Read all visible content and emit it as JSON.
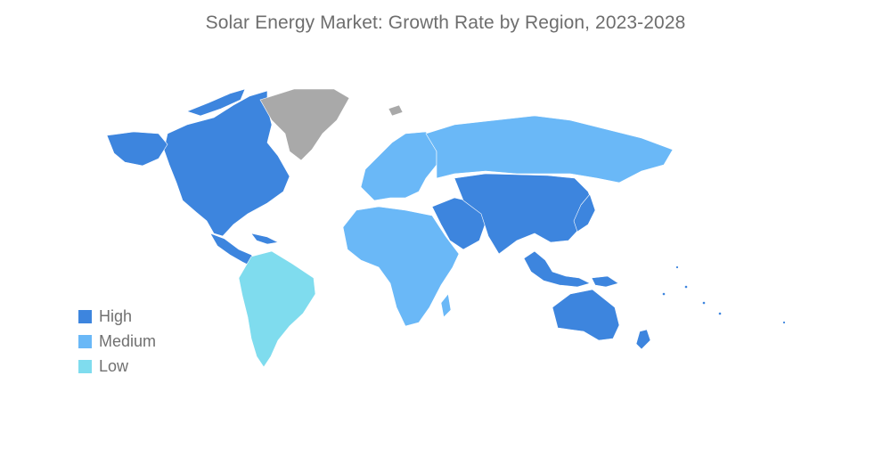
{
  "title": "Solar Energy Market: Growth Rate by Region, 2023-2028",
  "colors": {
    "high": "#3d85de",
    "medium": "#6ab8f7",
    "low": "#7fdcee",
    "no_data": "#a9a9a9"
  },
  "legend": [
    {
      "label": "High",
      "color": "#3d85de"
    },
    {
      "label": "Medium",
      "color": "#6ab8f7"
    },
    {
      "label": "Low",
      "color": "#7fdcee"
    }
  ],
  "regions": [
    {
      "name": "North America",
      "level": "high"
    },
    {
      "name": "Central America and Caribbean",
      "level": "high"
    },
    {
      "name": "South America",
      "level": "low"
    },
    {
      "name": "Greenland",
      "level": "no_data"
    },
    {
      "name": "Svalbard",
      "level": "no_data"
    },
    {
      "name": "Europe",
      "level": "medium"
    },
    {
      "name": "Russia",
      "level": "medium"
    },
    {
      "name": "Africa",
      "level": "medium"
    },
    {
      "name": "Middle East",
      "level": "high"
    },
    {
      "name": "Asia",
      "level": "high"
    },
    {
      "name": "Southeast Asia",
      "level": "high"
    },
    {
      "name": "Australia",
      "level": "high"
    },
    {
      "name": "New Zealand",
      "level": "high"
    }
  ]
}
